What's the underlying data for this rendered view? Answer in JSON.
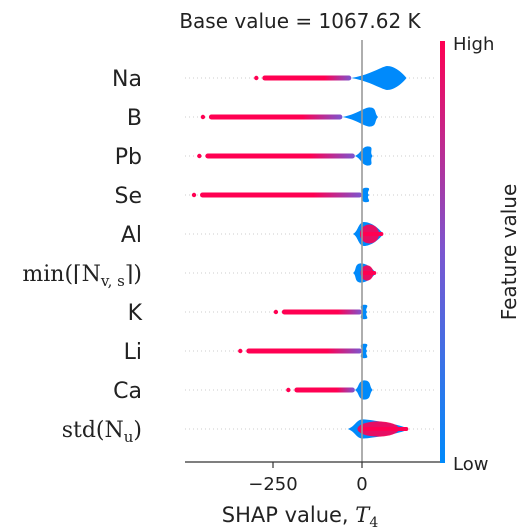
{
  "chart_data": {
    "type": "scatter",
    "subtype": "shap-beeswarm",
    "title": "Base value = 1067.62 K",
    "xlabel": "SHAP value, ",
    "xlabel_symbol": "T",
    "xlabel_subscript": "4",
    "xlim": [
      -490,
      170
    ],
    "xticks": [
      {
        "value": -250,
        "label": "−250"
      },
      {
        "value": 0,
        "label": "0"
      }
    ],
    "zero_line": true,
    "colorbar": {
      "title": "Feature value",
      "high_label": "High",
      "low_label": "Low",
      "high_color": "#ff0052",
      "mid_color": "#7b56d0",
      "low_color": "#008afb"
    },
    "features": [
      {
        "label": "Na",
        "min": -280,
        "max": 125,
        "low_start": -30,
        "center": 70,
        "peak": 5,
        "math": false
      },
      {
        "label": "B",
        "min": -430,
        "max": 45,
        "low_start": -55,
        "center": 20,
        "peak": 4,
        "math": false
      },
      {
        "label": "Pb",
        "min": -440,
        "max": 30,
        "low_start": -20,
        "center": 15,
        "peak": 4,
        "math": false
      },
      {
        "label": "Se",
        "min": -455,
        "max": 20,
        "low_start": 0,
        "center": 10,
        "peak": 3,
        "math": false
      },
      {
        "label": "Al",
        "min": -25,
        "max": 60,
        "low_start": -25,
        "center": 5,
        "peak": 5,
        "math": false
      },
      {
        "label": "min(⌈N",
        "label_sub": "v, s",
        "label_tail": "⌉)",
        "min": -25,
        "max": 40,
        "low_start": -25,
        "center": -5,
        "peak": 4,
        "math": true
      },
      {
        "label": "K",
        "min": -225,
        "max": 15,
        "low_start": 0,
        "center": 5,
        "peak": 3,
        "math": false
      },
      {
        "label": "Li",
        "min": -325,
        "max": 15,
        "low_start": 0,
        "center": 5,
        "peak": 3,
        "math": false
      },
      {
        "label": "Ca",
        "min": -190,
        "max": 30,
        "low_start": -20,
        "center": 5,
        "peak": 4,
        "math": false
      },
      {
        "label": "std(N",
        "label_sub": "u",
        "label_tail": ")",
        "min": -40,
        "max": 130,
        "low_start": -40,
        "center": 0,
        "peak": 4,
        "math": true
      }
    ]
  }
}
